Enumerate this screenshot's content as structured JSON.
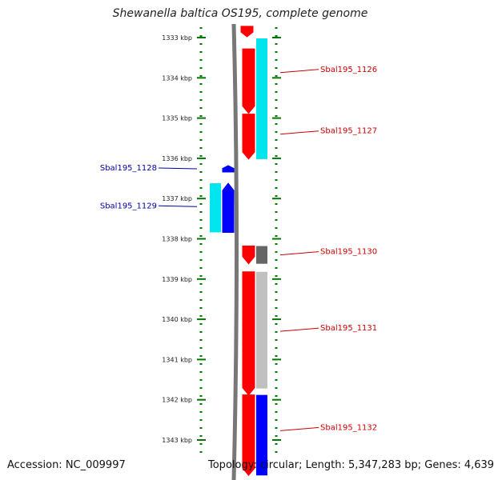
{
  "title": "Shewanella baltica OS195, complete genome",
  "footer": {
    "accession": "Accession: NC_009997",
    "stats": "Topology: circular; Length: 5,347,283 bp; Genes: 4,639"
  },
  "colors": {
    "forward": "#ff0000",
    "reverse": "#0000ff",
    "cyan": "#00e5ee",
    "gray_dark": "#666666",
    "gray_light": "#c0c0c0",
    "tick": "#007700",
    "right_label": "#cc0000",
    "left_label": "#0000aa",
    "backbone": "#777777"
  },
  "axis": {
    "unit": "kbp",
    "ticks": [
      {
        "value": 1333,
        "label": "1333 kbp"
      },
      {
        "value": 1334,
        "label": "1334 kbp"
      },
      {
        "value": 1335,
        "label": "1335 kbp"
      },
      {
        "value": 1336,
        "label": "1336 kbp"
      },
      {
        "value": 1337,
        "label": "1337 kbp"
      },
      {
        "value": 1338,
        "label": "1338 kbp"
      },
      {
        "value": 1339,
        "label": "1339 kbp"
      },
      {
        "value": 1340,
        "label": "1340 kbp"
      },
      {
        "value": 1341,
        "label": "1341 kbp"
      },
      {
        "value": 1342,
        "label": "1342 kbp"
      },
      {
        "value": 1343,
        "label": "1343 kbp"
      }
    ]
  },
  "genes": [
    {
      "name": "Sbal195_1126",
      "strand": "+",
      "start_kbp": 1333.28,
      "end_kbp": 1334.88,
      "side": "right",
      "label_at_kbp": 1333.85
    },
    {
      "name": "Sbal195_1127",
      "strand": "+",
      "start_kbp": 1334.9,
      "end_kbp": 1336.02,
      "side": "right",
      "label_at_kbp": 1335.38
    },
    {
      "name": "Sbal195_1128",
      "strand": "-",
      "start_kbp": 1336.18,
      "end_kbp": 1336.34,
      "side": "left",
      "label_at_kbp": 1336.3
    },
    {
      "name": "Sbal195_1129",
      "strand": "-",
      "start_kbp": 1336.62,
      "end_kbp": 1337.84,
      "side": "left",
      "label_at_kbp": 1337.24
    },
    {
      "name": "Sbal195_1130",
      "strand": "+",
      "start_kbp": 1338.18,
      "end_kbp": 1338.62,
      "side": "right",
      "label_at_kbp": 1338.38
    },
    {
      "name": "Sbal195_1131",
      "strand": "+",
      "start_kbp": 1338.82,
      "end_kbp": 1341.88,
      "side": "right",
      "label_at_kbp": 1340.28
    },
    {
      "name": "Sbal195_1132",
      "strand": "+",
      "start_kbp": 1341.88,
      "end_kbp": 1343.88,
      "side": "right",
      "label_at_kbp": 1342.75
    }
  ],
  "features": [
    {
      "strand": "+",
      "color": "cyan",
      "start_kbp": 1333.02,
      "end_kbp": 1336.02
    },
    {
      "strand": "-",
      "color": "cyan",
      "start_kbp": 1336.62,
      "end_kbp": 1337.84
    },
    {
      "strand": "+",
      "color": "gray_dark",
      "start_kbp": 1338.18,
      "end_kbp": 1338.62
    },
    {
      "strand": "+",
      "color": "gray_light",
      "start_kbp": 1338.82,
      "end_kbp": 1341.72
    },
    {
      "strand": "+",
      "color": "reverse",
      "start_kbp": 1341.88,
      "end_kbp": 1343.88
    }
  ]
}
